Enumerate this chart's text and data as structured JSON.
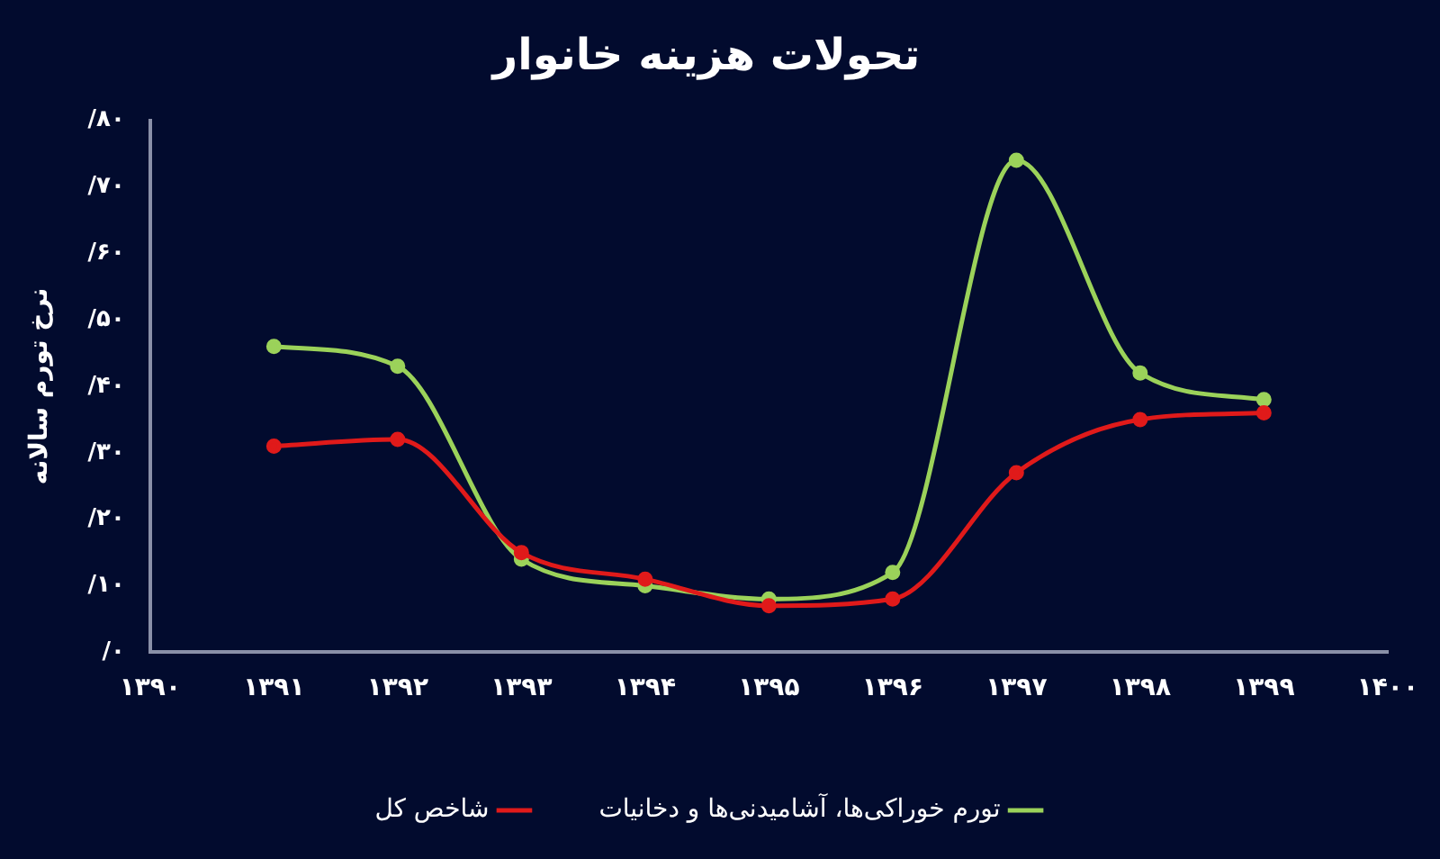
{
  "chart_data": {
    "type": "line",
    "title": "تحولات هزینه خانوار",
    "ylabel": "نرخ تورم سالانه",
    "x": [
      1391,
      1392,
      1393,
      1394,
      1395,
      1396,
      1397,
      1398,
      1399
    ],
    "series": [
      {
        "name": "تورم خوراکی‌ها، آشامیدنی‌ها و دخانیات",
        "color": "#9bd25a",
        "values": [
          46,
          43,
          14,
          10,
          8,
          12,
          74,
          42,
          38
        ]
      },
      {
        "name": "شاخص کل",
        "color": "#e01a1a",
        "values": [
          31,
          32,
          15,
          11,
          7,
          8,
          27,
          35,
          36
        ]
      }
    ],
    "xlim": [
      1390,
      1400
    ],
    "xticks": [
      {
        "value": 1390,
        "label": "۱۳۹۰"
      },
      {
        "value": 1391,
        "label": "۱۳۹۱"
      },
      {
        "value": 1392,
        "label": "۱۳۹۲"
      },
      {
        "value": 1393,
        "label": "۱۳۹۳"
      },
      {
        "value": 1394,
        "label": "۱۳۹۴"
      },
      {
        "value": 1395,
        "label": "۱۳۹۵"
      },
      {
        "value": 1396,
        "label": "۱۳۹۶"
      },
      {
        "value": 1397,
        "label": "۱۳۹۷"
      },
      {
        "value": 1398,
        "label": "۱۳۹۸"
      },
      {
        "value": 1399,
        "label": "۱۳۹۹"
      },
      {
        "value": 1400,
        "label": "۱۴۰۰"
      }
    ],
    "ylim": [
      0,
      80
    ],
    "yticks": [
      {
        "value": 0,
        "label": "/۰"
      },
      {
        "value": 10,
        "label": "/۱۰"
      },
      {
        "value": 20,
        "label": "/۲۰"
      },
      {
        "value": 30,
        "label": "/۳۰"
      },
      {
        "value": 40,
        "label": "/۴۰"
      },
      {
        "value": 50,
        "label": "/۵۰"
      },
      {
        "value": 60,
        "label": "/۶۰"
      },
      {
        "value": 70,
        "label": "/۷۰"
      },
      {
        "value": 80,
        "label": "/۸۰"
      }
    ],
    "grid": false,
    "legend": "bottom",
    "marker": "circle",
    "line_style": "solid"
  }
}
